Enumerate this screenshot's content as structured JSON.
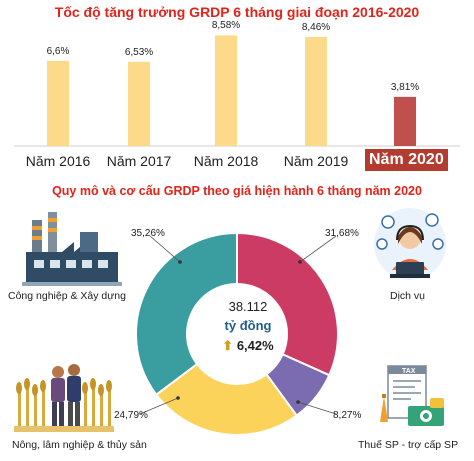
{
  "colors": {
    "title": "#e2231a",
    "bar": "#fdd98a",
    "bar_highlight": "#c0504d",
    "highlight_bg": "#b33b30",
    "teal": "#3a9da0",
    "crimson": "#cc3b63",
    "yellow": "#fbd35a",
    "purple": "#7b6bb0"
  },
  "chart_data": [
    {
      "type": "bar",
      "title": "Tốc độ tăng trưởng GRDP 6 tháng giai đoạn 2016-2020",
      "categories": [
        "Năm 2016",
        "Năm 2017",
        "Năm 2018",
        "Năm 2019",
        "Năm 2020"
      ],
      "values": [
        6.6,
        6.53,
        8.58,
        8.46,
        3.81
      ],
      "value_labels": [
        "6,6%",
        "6,53%",
        "8,58%",
        "8,46%",
        "3,81%"
      ],
      "highlight_index": 4,
      "ylim": [
        0,
        9
      ]
    },
    {
      "type": "pie",
      "title": "Quy mô và cơ cấu GRDP theo giá hiện hành 6 tháng năm 2020",
      "center": {
        "total": "38.112",
        "unit": "tỷ đồng",
        "arrow": "⬆",
        "growth": "6,42%"
      },
      "slices": [
        {
          "name": "Dịch vụ",
          "value": 31.68,
          "label": "31,68%",
          "color": "#cc3b63"
        },
        {
          "name": "Thuế SP - trợ cấp SP",
          "value": 8.27,
          "label": "8,27%",
          "color": "#7b6bb0"
        },
        {
          "name": "Nông, lâm nghiệp & thủy sản",
          "value": 24.79,
          "label": "24,79%",
          "color": "#fbd35a"
        },
        {
          "name": "Công nghiệp & Xây dựng",
          "value": 35.26,
          "label": "35,26%",
          "color": "#3a9da0"
        }
      ]
    }
  ],
  "icons": {
    "industry": "factory-icon",
    "services": "call-center-icon",
    "agriculture": "farmers-icon",
    "tax": "tax-document-icon"
  },
  "tax_doc_text": "TAX"
}
